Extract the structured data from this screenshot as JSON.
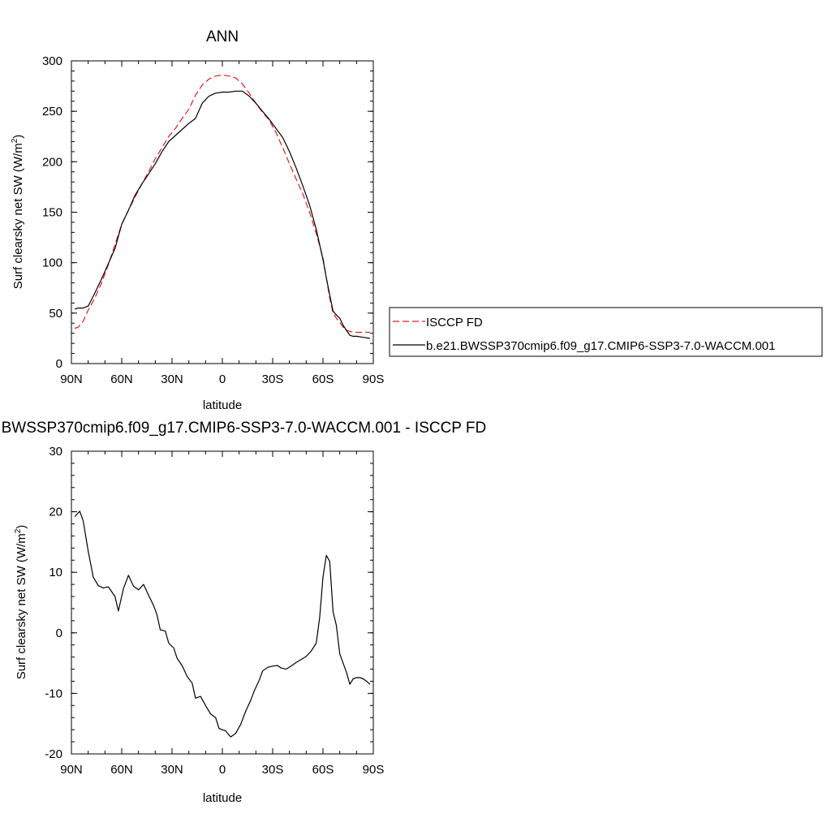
{
  "chart_data": [
    {
      "type": "line",
      "title": "ANN",
      "xlabel": "latitude",
      "ylabel": "Surf clearsky net SW (W/m",
      "ylabel_sup": "2",
      "ylabel_end": ")",
      "xlim": [
        90,
        -90
      ],
      "ylim": [
        0,
        300
      ],
      "xticks": [
        90,
        60,
        30,
        0,
        -30,
        -60,
        -90
      ],
      "xtick_labels": [
        "90N",
        "60N",
        "30N",
        "0",
        "30S",
        "60S",
        "90S"
      ],
      "yticks": [
        0,
        50,
        100,
        150,
        200,
        250,
        300
      ],
      "ytick_labels": [
        "0",
        "50",
        "100",
        "150",
        "200",
        "250",
        "300"
      ],
      "legend_position": "right",
      "series": [
        {
          "name": "ISCCP FD",
          "color": "#e41a1c",
          "dash": "dashed",
          "x": [
            88,
            86,
            83,
            80,
            76,
            72,
            68,
            64,
            60,
            56,
            52,
            48,
            44,
            40,
            36,
            32,
            28,
            24,
            20,
            16,
            12,
            8,
            4,
            0,
            -4,
            -8,
            -12,
            -16,
            -20,
            -24,
            -28,
            -32,
            -36,
            -40,
            -44,
            -48,
            -52,
            -56,
            -60,
            -62,
            -64,
            -66,
            -68,
            -70,
            -72,
            -74,
            -76,
            -78,
            -80,
            -84,
            -88
          ],
          "values": [
            35,
            36,
            42,
            53,
            65,
            80,
            98,
            118,
            138,
            152,
            165,
            178,
            190,
            203,
            214,
            225,
            233,
            243,
            252,
            266,
            276,
            282,
            285,
            286,
            285,
            283,
            277,
            268,
            258,
            249,
            241,
            229,
            214,
            198,
            183,
            168,
            150,
            129,
            105,
            85,
            65,
            50,
            45,
            41,
            36,
            33,
            32,
            31,
            31,
            31,
            31
          ]
        },
        {
          "name": "b.e21.BWSSP370cmip6.f09_g17.CMIP6-SSP3-7.0-WACCM.001",
          "color": "#000000",
          "dash": "solid",
          "x": [
            88,
            86,
            83,
            80,
            76,
            72,
            68,
            64,
            60,
            56,
            52,
            48,
            44,
            40,
            36,
            32,
            28,
            24,
            20,
            16,
            12,
            8,
            4,
            0,
            -4,
            -8,
            -12,
            -16,
            -20,
            -24,
            -28,
            -32,
            -36,
            -40,
            -44,
            -48,
            -52,
            -56,
            -60,
            -62,
            -64,
            -66,
            -68,
            -70,
            -72,
            -74,
            -76,
            -78,
            -80,
            -84,
            -88
          ],
          "values": [
            54,
            55,
            55,
            57,
            70,
            84,
            99,
            114,
            138,
            152,
            167,
            178,
            188,
            198,
            210,
            220,
            226,
            232,
            238,
            243,
            258,
            265,
            268,
            269,
            269,
            270,
            270,
            265,
            258,
            250,
            242,
            233,
            224,
            210,
            194,
            176,
            157,
            133,
            103,
            85,
            68,
            52,
            48,
            45,
            38,
            33,
            28,
            27,
            27,
            26,
            25
          ]
        }
      ]
    },
    {
      "type": "line",
      "title": "b.e21.BWSSP370cmip6.f09_g17.CMIP6-SSP3-7.0-WACCM.001 - ISCCP FD",
      "xlabel": "latitude",
      "ylabel": "Surf clearsky net SW (W/m",
      "ylabel_sup": "2",
      "ylabel_end": ")",
      "xlim": [
        90,
        -90
      ],
      "ylim": [
        -20,
        30
      ],
      "xticks": [
        90,
        60,
        30,
        0,
        -30,
        -60,
        -90
      ],
      "xtick_labels": [
        "90N",
        "60N",
        "30N",
        "0",
        "30S",
        "60S",
        "90S"
      ],
      "yticks": [
        -20,
        -10,
        0,
        10,
        20,
        30
      ],
      "ytick_labels": [
        "-20",
        "-10",
        "0",
        "10",
        "20",
        "30"
      ],
      "series": [
        {
          "color": "#000000",
          "dash": "solid",
          "x": [
            88,
            85,
            83,
            80,
            77,
            74,
            71,
            68,
            64,
            62,
            59,
            56,
            53,
            50,
            47,
            44,
            41,
            39,
            37,
            34,
            32,
            29,
            27,
            24,
            21,
            18,
            16,
            13,
            10,
            7,
            4,
            2,
            -2,
            -5,
            -8,
            -11,
            -14,
            -17,
            -19,
            -22,
            -24,
            -27,
            -30,
            -33,
            -35,
            -38,
            -41,
            -44,
            -47,
            -50,
            -53,
            -56,
            -58,
            -60,
            -62,
            -64,
            -66,
            -68,
            -70,
            -72,
            -74,
            -76,
            -78,
            -80,
            -82,
            -84,
            -86,
            -88
          ],
          "values": [
            19.2,
            20.1,
            18.5,
            13.5,
            9.2,
            7.8,
            7.4,
            7.6,
            6.0,
            3.6,
            7.3,
            9.5,
            7.7,
            7.1,
            8.0,
            6.2,
            4.5,
            3.0,
            0.5,
            0.3,
            -1.7,
            -2.5,
            -4.2,
            -5.4,
            -7.2,
            -8.3,
            -10.8,
            -10.5,
            -12.0,
            -13.4,
            -14.0,
            -15.8,
            -16.2,
            -17.2,
            -16.6,
            -15.1,
            -12.9,
            -11.1,
            -9.6,
            -7.8,
            -6.3,
            -5.7,
            -5.5,
            -5.4,
            -5.8,
            -6.0,
            -5.5,
            -4.9,
            -4.4,
            -3.9,
            -3.0,
            -1.7,
            2.5,
            9.2,
            12.8,
            11.8,
            3.5,
            1.2,
            -3.5,
            -5.0,
            -6.5,
            -8.5,
            -7.6,
            -7.4,
            -7.4,
            -7.6,
            -8.0,
            -8.5
          ]
        }
      ]
    }
  ]
}
